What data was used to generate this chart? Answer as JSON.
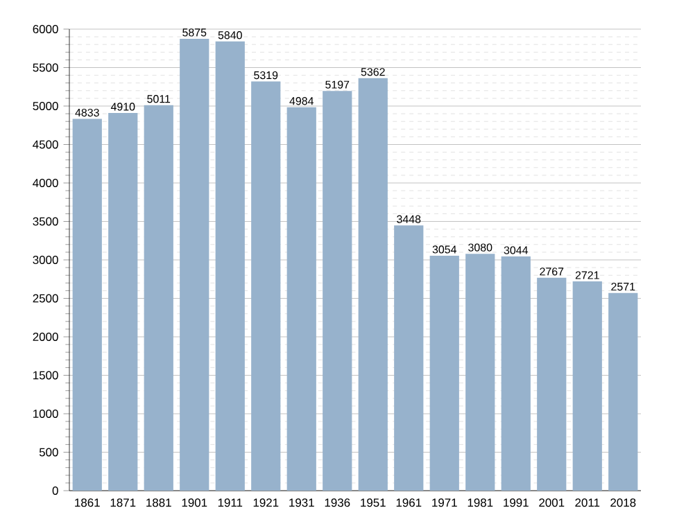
{
  "chart_data": {
    "type": "bar",
    "categories": [
      "1861",
      "1871",
      "1881",
      "1901",
      "1911",
      "1921",
      "1931",
      "1936",
      "1951",
      "1961",
      "1971",
      "1981",
      "1991",
      "2001",
      "2011",
      "2018"
    ],
    "values": [
      4833,
      4910,
      5011,
      5875,
      5840,
      5319,
      4984,
      5197,
      5362,
      3448,
      3054,
      3080,
      3044,
      2767,
      2721,
      2571
    ],
    "color": "#97b2cc",
    "ylim": [
      0,
      6000
    ],
    "yticks": [
      0,
      500,
      1000,
      1500,
      2000,
      2500,
      3000,
      3500,
      4000,
      4500,
      5000,
      5500,
      6000
    ],
    "grid": "y",
    "data_labels": true
  }
}
